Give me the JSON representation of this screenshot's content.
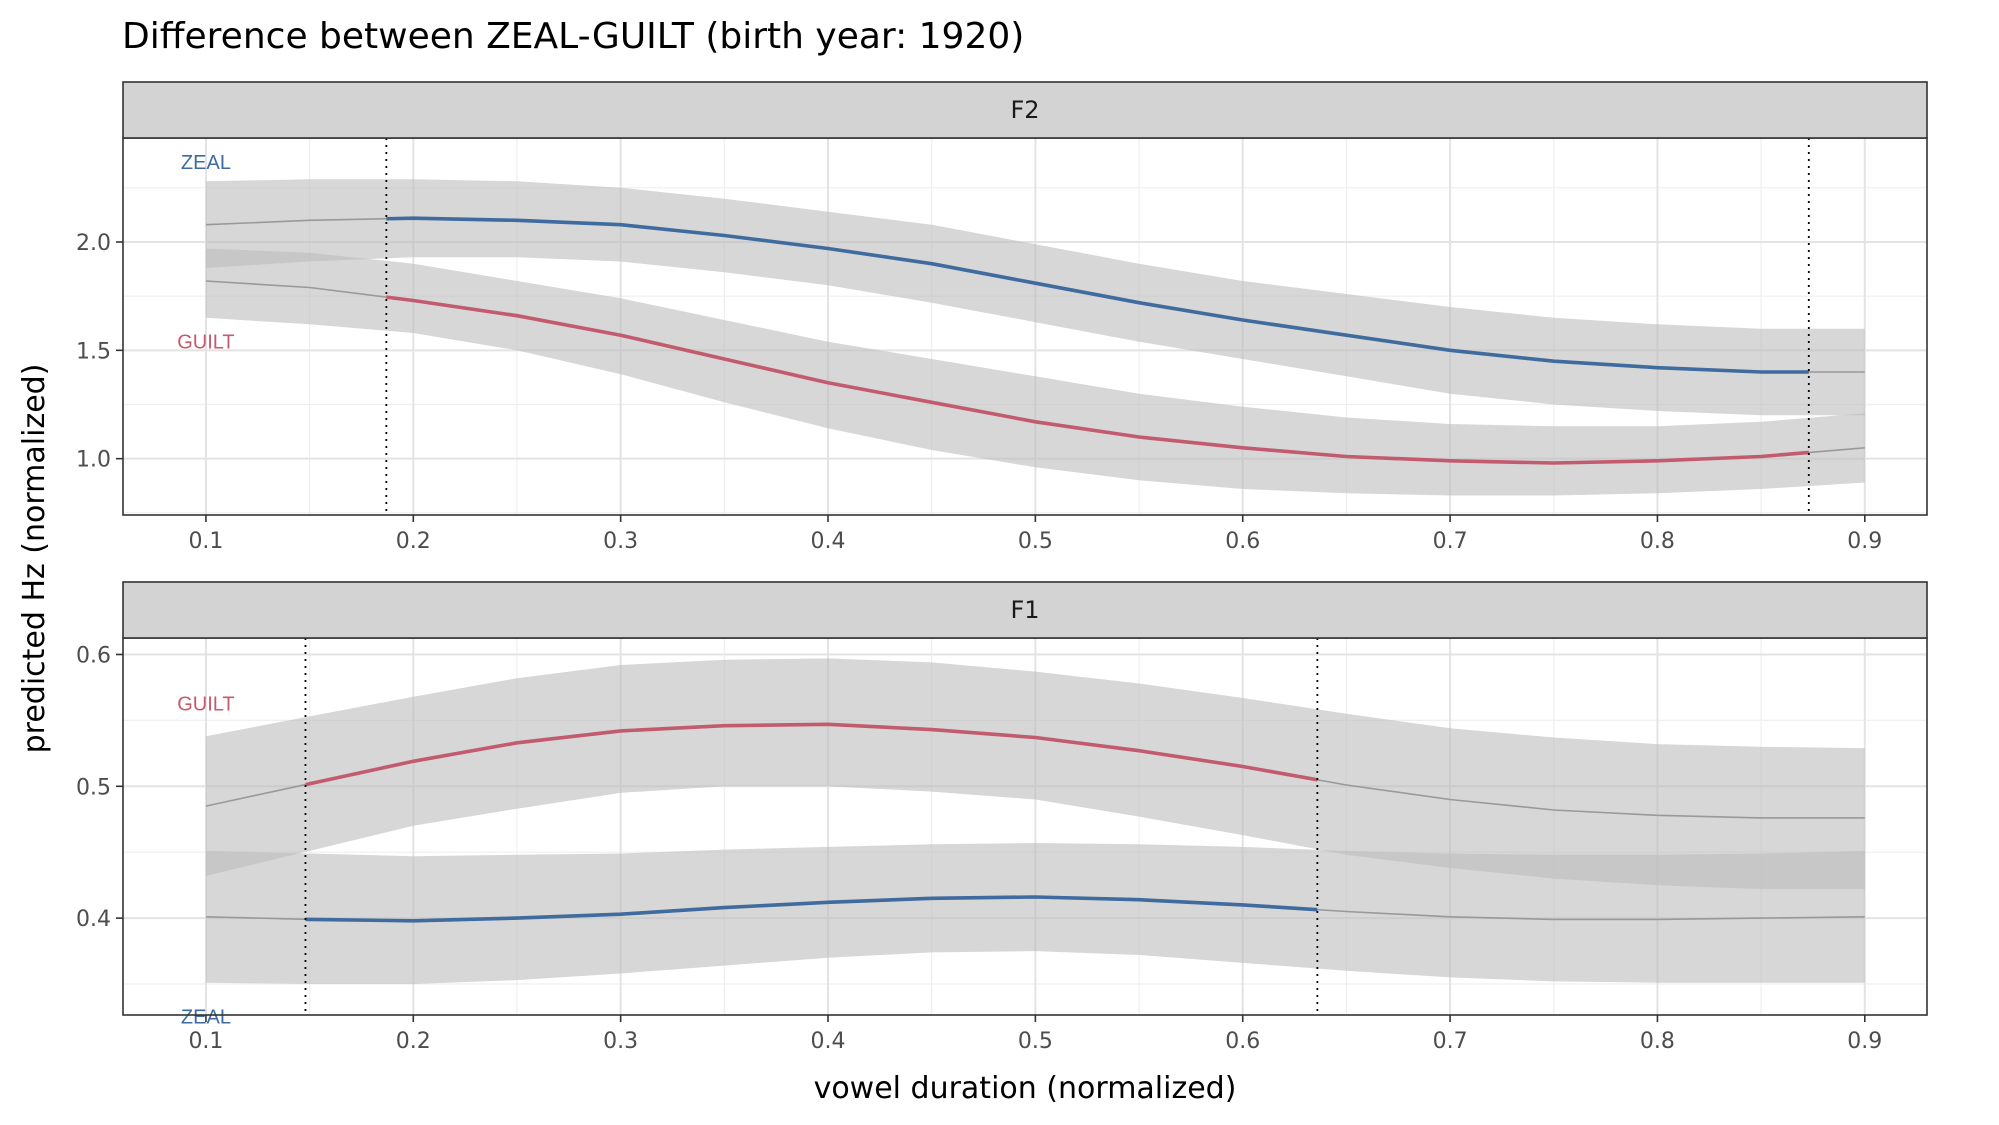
{
  "chart_data": {
    "type": "line",
    "title": "Difference between ZEAL-GUILT (birth year: 1920)",
    "xlabel": "vowel duration (normalized)",
    "ylabel": "predicted Hz (normalized)",
    "colors": {
      "ZEAL": "#3f6b9f",
      "GUILT": "#c35b6e",
      "outside": "#999999",
      "ribbon": "#bdbdbd"
    },
    "x_ticks": [
      0.1,
      0.2,
      0.3,
      0.4,
      0.5,
      0.6,
      0.7,
      0.8,
      0.9
    ],
    "x_tick_labels": [
      "0.1",
      "0.2",
      "0.3",
      "0.4",
      "0.5",
      "0.6",
      "0.7",
      "0.8",
      "0.9"
    ],
    "xlim": [
      0.06,
      0.93
    ],
    "panels": [
      {
        "strip": "F2",
        "ylim": [
          0.74,
          2.48
        ],
        "y_ticks": [
          1.0,
          1.5,
          2.0
        ],
        "y_tick_labels": [
          "1.0",
          "1.5",
          "2.0"
        ],
        "difference_interval": [
          0.187,
          0.873
        ],
        "series": [
          {
            "name": "ZEAL",
            "label_x": 0.1,
            "label_y": 2.37,
            "x": [
              0.1,
              0.15,
              0.2,
              0.25,
              0.3,
              0.35,
              0.4,
              0.45,
              0.5,
              0.55,
              0.6,
              0.65,
              0.7,
              0.75,
              0.8,
              0.85,
              0.9
            ],
            "y": [
              2.08,
              2.1,
              2.11,
              2.1,
              2.08,
              2.03,
              1.97,
              1.9,
              1.81,
              1.72,
              1.64,
              1.57,
              1.5,
              1.45,
              1.42,
              1.4,
              1.4
            ],
            "lower": [
              1.88,
              1.91,
              1.93,
              1.93,
              1.91,
              1.86,
              1.8,
              1.72,
              1.63,
              1.54,
              1.46,
              1.38,
              1.3,
              1.25,
              1.22,
              1.2,
              1.2
            ],
            "upper": [
              2.28,
              2.29,
              2.29,
              2.28,
              2.25,
              2.2,
              2.14,
              2.08,
              1.99,
              1.9,
              1.82,
              1.76,
              1.7,
              1.65,
              1.62,
              1.6,
              1.6
            ]
          },
          {
            "name": "GUILT",
            "label_x": 0.1,
            "label_y": 1.54,
            "x": [
              0.1,
              0.15,
              0.2,
              0.25,
              0.3,
              0.35,
              0.4,
              0.45,
              0.5,
              0.55,
              0.6,
              0.65,
              0.7,
              0.75,
              0.8,
              0.85,
              0.9
            ],
            "y": [
              1.82,
              1.79,
              1.73,
              1.66,
              1.57,
              1.46,
              1.35,
              1.26,
              1.17,
              1.1,
              1.05,
              1.01,
              0.99,
              0.98,
              0.99,
              1.01,
              1.05
            ],
            "lower": [
              1.65,
              1.62,
              1.58,
              1.5,
              1.39,
              1.26,
              1.14,
              1.04,
              0.96,
              0.9,
              0.86,
              0.84,
              0.83,
              0.83,
              0.84,
              0.86,
              0.89
            ],
            "upper": [
              1.97,
              1.95,
              1.9,
              1.82,
              1.74,
              1.64,
              1.54,
              1.46,
              1.38,
              1.3,
              1.24,
              1.19,
              1.16,
              1.15,
              1.15,
              1.17,
              1.21
            ]
          }
        ]
      },
      {
        "strip": "F1",
        "ylim": [
          0.3265,
          0.6125
        ],
        "y_ticks": [
          0.4,
          0.5,
          0.6
        ],
        "y_tick_labels": [
          "0.4",
          "0.5",
          "0.6"
        ],
        "difference_interval": [
          0.148,
          0.636
        ],
        "series": [
          {
            "name": "GUILT",
            "label_x": 0.1,
            "label_y": 0.563,
            "x": [
              0.1,
              0.15,
              0.2,
              0.25,
              0.3,
              0.35,
              0.4,
              0.45,
              0.5,
              0.55,
              0.6,
              0.65,
              0.7,
              0.75,
              0.8,
              0.85,
              0.9
            ],
            "y": [
              0.485,
              0.502,
              0.519,
              0.533,
              0.542,
              0.546,
              0.547,
              0.543,
              0.537,
              0.527,
              0.515,
              0.501,
              0.49,
              0.482,
              0.478,
              0.476,
              0.476
            ],
            "lower": [
              0.432,
              0.451,
              0.47,
              0.483,
              0.495,
              0.5,
              0.5,
              0.496,
              0.49,
              0.477,
              0.463,
              0.448,
              0.438,
              0.43,
              0.425,
              0.422,
              0.422
            ],
            "upper": [
              0.538,
              0.553,
              0.568,
              0.582,
              0.592,
              0.596,
              0.597,
              0.594,
              0.587,
              0.578,
              0.567,
              0.555,
              0.544,
              0.537,
              0.532,
              0.53,
              0.529
            ]
          },
          {
            "name": "ZEAL",
            "label_x": 0.1,
            "label_y": 0.3255,
            "x": [
              0.1,
              0.15,
              0.2,
              0.25,
              0.3,
              0.35,
              0.4,
              0.45,
              0.5,
              0.55,
              0.6,
              0.65,
              0.7,
              0.75,
              0.8,
              0.85,
              0.9
            ],
            "y": [
              0.401,
              0.399,
              0.398,
              0.4,
              0.403,
              0.408,
              0.412,
              0.415,
              0.416,
              0.414,
              0.41,
              0.405,
              0.401,
              0.399,
              0.399,
              0.4,
              0.401
            ],
            "lower": [
              0.351,
              0.35,
              0.35,
              0.353,
              0.358,
              0.364,
              0.37,
              0.374,
              0.375,
              0.372,
              0.366,
              0.36,
              0.355,
              0.352,
              0.351,
              0.351,
              0.351
            ],
            "upper": [
              0.451,
              0.449,
              0.447,
              0.448,
              0.449,
              0.452,
              0.454,
              0.456,
              0.457,
              0.456,
              0.454,
              0.451,
              0.449,
              0.448,
              0.448,
              0.449,
              0.451
            ]
          }
        ]
      }
    ]
  }
}
